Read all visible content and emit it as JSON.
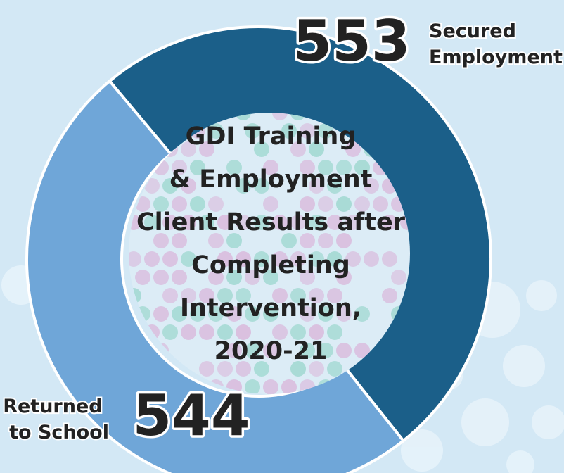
{
  "chart_data": {
    "type": "pie",
    "donut": true,
    "title": [
      "GDI Training",
      "& Employment",
      "Client Results after",
      "Completing",
      "Intervention,",
      "2020-21"
    ],
    "categories": [
      "Secured Employment",
      "Returned to School"
    ],
    "values": [
      553,
      544
    ],
    "colors": [
      "#1b5f89",
      "#6fa6d8"
    ]
  }
}
